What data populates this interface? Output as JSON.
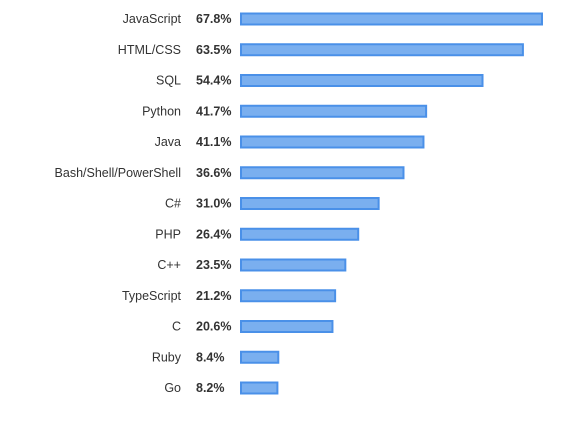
{
  "chart_data": {
    "type": "bar",
    "orientation": "horizontal",
    "categories": [
      "JavaScript",
      "HTML/CSS",
      "SQL",
      "Python",
      "Java",
      "Bash/Shell/PowerShell",
      "C#",
      "PHP",
      "C++",
      "TypeScript",
      "C",
      "Ruby",
      "Go"
    ],
    "values": [
      67.8,
      63.5,
      54.4,
      41.7,
      41.1,
      36.6,
      31.0,
      26.4,
      23.5,
      21.2,
      20.6,
      8.4,
      8.2
    ],
    "value_labels": [
      "67.8%",
      "63.5%",
      "54.4%",
      "41.7%",
      "41.1%",
      "36.6%",
      "31.0%",
      "26.4%",
      "23.5%",
      "21.2%",
      "20.6%",
      "8.4%",
      "8.2%"
    ],
    "title": "",
    "xlabel": "",
    "ylabel": "",
    "grid": false,
    "legend": "none",
    "bar_fill": "#7aafef",
    "bar_stroke": "#4a90e8"
  }
}
